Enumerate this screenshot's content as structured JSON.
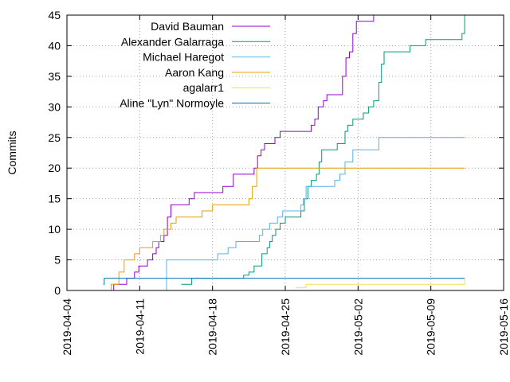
{
  "chart_data": {
    "type": "line",
    "title": "",
    "xlabel": "",
    "ylabel": "Commits",
    "x_axis_type": "date",
    "xlim": [
      "2019-04-04",
      "2019-05-16"
    ],
    "ylim": [
      0,
      45
    ],
    "x_ticks": [
      "2019-04-04",
      "2019-04-11",
      "2019-04-18",
      "2019-04-25",
      "2019-05-02",
      "2019-05-09",
      "2019-05-16"
    ],
    "y_ticks": [
      0,
      5,
      10,
      15,
      20,
      25,
      30,
      35,
      40,
      45
    ],
    "grid": true,
    "legend_position": "top-left",
    "series": [
      {
        "name": "David Bauman",
        "color": "#9400d3",
        "points": [
          [
            "2019-04-08T00:00",
            0
          ],
          [
            "2019-04-08T12:00",
            1
          ],
          [
            "2019-04-09T18:00",
            2
          ],
          [
            "2019-04-10T12:00",
            3
          ],
          [
            "2019-04-10T22:00",
            4
          ],
          [
            "2019-04-11T18:00",
            5
          ],
          [
            "2019-04-12T06:00",
            6
          ],
          [
            "2019-04-12T14:00",
            7
          ],
          [
            "2019-04-12T20:00",
            8
          ],
          [
            "2019-04-13T08:00",
            9
          ],
          [
            "2019-04-13T16:00",
            12
          ],
          [
            "2019-04-14T00:00",
            14
          ],
          [
            "2019-04-15T18:00",
            15
          ],
          [
            "2019-04-16T06:00",
            16
          ],
          [
            "2019-04-19T00:00",
            17
          ],
          [
            "2019-04-20T00:00",
            19
          ],
          [
            "2019-04-22T00:00",
            20
          ],
          [
            "2019-04-22T08:00",
            22
          ],
          [
            "2019-04-22T16:00",
            23
          ],
          [
            "2019-04-23T00:00",
            24
          ],
          [
            "2019-04-24T00:00",
            25
          ],
          [
            "2019-04-24T12:00",
            26
          ],
          [
            "2019-04-27T12:00",
            27
          ],
          [
            "2019-04-27T20:00",
            28
          ],
          [
            "2019-04-28T04:00",
            30
          ],
          [
            "2019-04-28T16:00",
            31
          ],
          [
            "2019-04-29T00:00",
            32
          ],
          [
            "2019-04-30T12:00",
            35
          ],
          [
            "2019-04-30T20:00",
            38
          ],
          [
            "2019-05-01T04:00",
            39
          ],
          [
            "2019-05-01T12:00",
            42
          ],
          [
            "2019-05-01T20:00",
            44
          ],
          [
            "2019-05-03T12:00",
            45
          ],
          [
            "2019-05-04T00:00",
            46
          ]
        ]
      },
      {
        "name": "Alexander Galarraga",
        "color": "#009e73",
        "points": [
          [
            "2019-04-15T00:00",
            1
          ],
          [
            "2019-04-16T00:00",
            2
          ],
          [
            "2019-04-21T00:00",
            2.5
          ],
          [
            "2019-04-21T12:00",
            3
          ],
          [
            "2019-04-22T00:00",
            4
          ],
          [
            "2019-04-22T18:00",
            6
          ],
          [
            "2019-04-23T06:00",
            7
          ],
          [
            "2019-04-23T12:00",
            8
          ],
          [
            "2019-04-23T18:00",
            9
          ],
          [
            "2019-04-24T02:00",
            10
          ],
          [
            "2019-04-24T12:00",
            11
          ],
          [
            "2019-04-25T00:00",
            12
          ],
          [
            "2019-04-26T12:00",
            13
          ],
          [
            "2019-04-26T20:00",
            15
          ],
          [
            "2019-04-27T04:00",
            17
          ],
          [
            "2019-04-27T12:00",
            18
          ],
          [
            "2019-04-28T00:00",
            19
          ],
          [
            "2019-04-28T06:00",
            21
          ],
          [
            "2019-04-28T12:00",
            23
          ],
          [
            "2019-04-30T00:00",
            24
          ],
          [
            "2019-04-30T18:00",
            26
          ],
          [
            "2019-05-01T00:00",
            27
          ],
          [
            "2019-05-01T12:00",
            28
          ],
          [
            "2019-05-02T12:00",
            29
          ],
          [
            "2019-05-03T00:00",
            30
          ],
          [
            "2019-05-03T12:00",
            31
          ],
          [
            "2019-05-04T00:00",
            34
          ],
          [
            "2019-05-04T06:00",
            37
          ],
          [
            "2019-05-04T12:00",
            39
          ],
          [
            "2019-05-07T00:00",
            40
          ],
          [
            "2019-05-08T12:00",
            41
          ],
          [
            "2019-05-12T00:00",
            42
          ],
          [
            "2019-05-12T06:00",
            46
          ]
        ]
      },
      {
        "name": "Michael Haregot",
        "color": "#56b4e9",
        "points": [
          [
            "2019-04-13T12:00",
            0
          ],
          [
            "2019-04-13T14:00",
            5
          ],
          [
            "2019-04-17T00:00",
            5
          ],
          [
            "2019-04-18T12:00",
            6
          ],
          [
            "2019-04-19T12:00",
            7
          ],
          [
            "2019-04-20T06:00",
            8
          ],
          [
            "2019-04-22T12:00",
            9
          ],
          [
            "2019-04-22T20:00",
            10
          ],
          [
            "2019-04-23T12:00",
            11
          ],
          [
            "2019-04-24T06:00",
            12
          ],
          [
            "2019-04-24T18:00",
            13
          ],
          [
            "2019-04-26T12:00",
            14
          ],
          [
            "2019-04-26T18:00",
            15
          ],
          [
            "2019-04-27T00:00",
            17
          ],
          [
            "2019-04-29T18:00",
            18
          ],
          [
            "2019-04-30T06:00",
            19
          ],
          [
            "2019-04-30T18:00",
            21
          ],
          [
            "2019-05-01T12:00",
            23
          ],
          [
            "2019-05-04T00:00",
            25
          ],
          [
            "2019-05-12T06:00",
            25
          ]
        ]
      },
      {
        "name": "Aaron Kang",
        "color": "#e69f00",
        "points": [
          [
            "2019-04-07T12:00",
            0
          ],
          [
            "2019-04-08T06:00",
            1
          ],
          [
            "2019-04-09T00:00",
            3
          ],
          [
            "2019-04-09T12:00",
            5
          ],
          [
            "2019-04-10T12:00",
            6
          ],
          [
            "2019-04-11T00:00",
            7
          ],
          [
            "2019-04-12T06:00",
            8
          ],
          [
            "2019-04-13T00:00",
            9
          ],
          [
            "2019-04-13T08:00",
            10
          ],
          [
            "2019-04-14T00:00",
            11
          ],
          [
            "2019-04-14T12:00",
            12
          ],
          [
            "2019-04-17T00:00",
            13
          ],
          [
            "2019-04-18T00:00",
            14
          ],
          [
            "2019-04-21T12:00",
            15
          ],
          [
            "2019-04-21T20:00",
            17
          ],
          [
            "2019-04-22T06:00",
            20
          ],
          [
            "2019-05-12T06:00",
            20
          ]
        ]
      },
      {
        "name": "agalarr1",
        "color": "#f0e442",
        "points": [
          [
            "2019-04-26T00:00",
            0.5
          ],
          [
            "2019-04-27T00:00",
            1
          ],
          [
            "2019-05-08T00:00",
            1
          ],
          [
            "2019-05-12T06:00",
            2
          ]
        ]
      },
      {
        "name": "Aline \"Lyn\" Normoyle",
        "color": "#0072b2",
        "points": [
          [
            "2019-04-07T12:00",
            1
          ],
          [
            "2019-04-07T14:00",
            2
          ],
          [
            "2019-05-12T06:00",
            2
          ]
        ]
      }
    ]
  }
}
